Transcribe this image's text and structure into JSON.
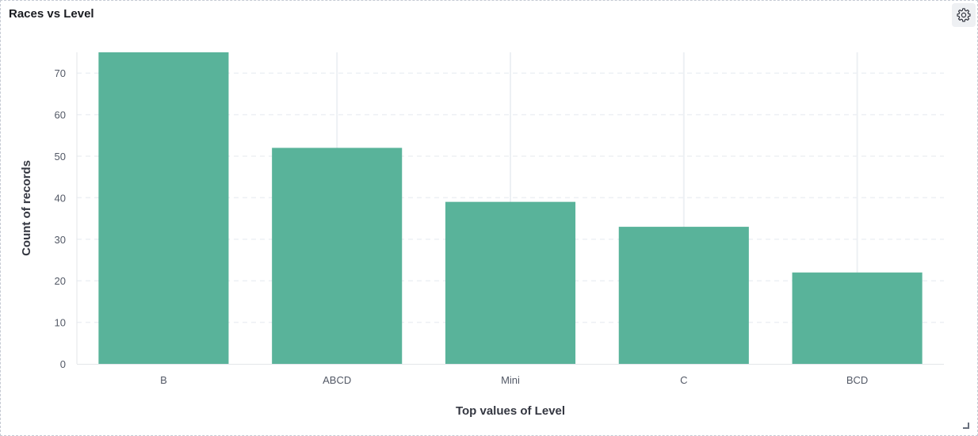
{
  "panel": {
    "title": "Races vs Level"
  },
  "icons": {
    "settings": "gear-icon",
    "resize": "resize-handle-icon"
  },
  "colors": {
    "bar": "#59b39a",
    "grid": "#edf0f4",
    "axis": "#e3e6ea"
  },
  "chart_data": {
    "type": "bar",
    "title": "Races vs Level",
    "xlabel": "Top values of Level",
    "ylabel": "Count of records",
    "categories": [
      "B",
      "ABCD",
      "Mini",
      "C",
      "BCD"
    ],
    "values": [
      75,
      52,
      39,
      33,
      22
    ],
    "ylim": [
      0,
      75
    ],
    "yticks": [
      0,
      10,
      20,
      30,
      40,
      50,
      60,
      70
    ],
    "grid": true,
    "legend": "none"
  }
}
